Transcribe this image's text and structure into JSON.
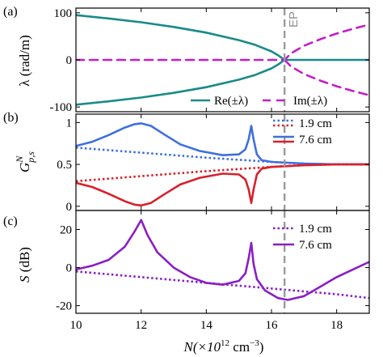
{
  "colors": {
    "teal": "#1a8a8a",
    "magenta": "#c21fc7",
    "blue": "#3f6fe0",
    "red": "#d8212c",
    "purple": "#8a1fc4",
    "ep_line": "#9a9a9a"
  },
  "shared_x": {
    "label": "N(×10",
    "label_sup": "12",
    "label_unit": " cm",
    "label_unit_sup": "−3",
    "label_close": ")",
    "range": [
      10,
      19
    ],
    "ticks": [
      10,
      12,
      14,
      16,
      18
    ],
    "ep_x": 16.4,
    "ep_label": "EP"
  },
  "chart_data": [
    {
      "type": "line",
      "panel": "(a)",
      "ylabel": "λ (rad/m)",
      "ylim": [
        -110,
        110
      ],
      "yticks": [
        100,
        0,
        -100
      ],
      "legend": {
        "placement": "bottom-right",
        "entries": [
          "Re(±λ)",
          "Im(±λ)"
        ]
      },
      "series": [
        {
          "name": "Re(±λ)",
          "style": "solid",
          "color": "teal",
          "x": [
            10,
            11,
            12,
            13,
            14,
            15,
            15.5,
            16,
            16.2,
            16.4,
            17,
            18,
            19
          ],
          "y": [
            95,
            88,
            80,
            70,
            58,
            42,
            32,
            18,
            10,
            0,
            0,
            0,
            0
          ]
        },
        {
          "name": "-Re(±λ)",
          "style": "solid",
          "color": "teal",
          "x": [
            10,
            11,
            12,
            13,
            14,
            15,
            15.5,
            16,
            16.2,
            16.4
          ],
          "y": [
            -95,
            -88,
            -80,
            -70,
            -58,
            -42,
            -32,
            -18,
            -10,
            0
          ]
        },
        {
          "name": "Im(±λ)",
          "style": "dashed",
          "color": "magenta",
          "x": [
            10,
            12,
            14,
            16,
            16.4,
            16.6,
            17,
            17.5,
            18,
            18.5,
            19
          ],
          "y": [
            0,
            0,
            0,
            0,
            0,
            14,
            30,
            44,
            56,
            66,
            75
          ]
        },
        {
          "name": "-Im(±λ)",
          "style": "dashed",
          "color": "magenta",
          "x": [
            16.4,
            16.6,
            17,
            17.5,
            18,
            18.5,
            19
          ],
          "y": [
            0,
            -14,
            -30,
            -44,
            -56,
            -66,
            -75
          ]
        }
      ]
    },
    {
      "type": "line",
      "panel": "(b)",
      "ylabel": "G",
      "ylabel_sup": "N",
      "ylabel_sub": "p,s",
      "ylim": [
        -0.05,
        1.1
      ],
      "yticks": [
        1,
        0.5,
        0
      ],
      "legend": {
        "placement": "top-right",
        "entries": [
          "1.9 cm",
          "7.6 cm"
        ]
      },
      "series": [
        {
          "name": "1.9 cm",
          "style": "dotted",
          "color": "blue",
          "x": [
            10,
            12,
            14,
            16,
            16.4,
            17,
            18,
            19
          ],
          "y": [
            0.7,
            0.64,
            0.58,
            0.53,
            0.52,
            0.51,
            0.5,
            0.5
          ]
        },
        {
          "name": "1.9 cm",
          "style": "dotted",
          "color": "red",
          "x": [
            10,
            12,
            14,
            16,
            16.4,
            17,
            18,
            19
          ],
          "y": [
            0.3,
            0.36,
            0.42,
            0.47,
            0.48,
            0.49,
            0.5,
            0.5
          ]
        },
        {
          "name": "7.6 cm",
          "style": "solid",
          "color": "blue",
          "x": [
            10,
            10.5,
            11,
            11.5,
            11.8,
            12,
            12.3,
            12.7,
            13.2,
            13.8,
            14.5,
            15,
            15.2,
            15.3,
            15.38,
            15.45,
            15.55,
            15.7,
            16,
            16.5,
            17,
            18,
            19
          ],
          "y": [
            0.72,
            0.77,
            0.85,
            0.94,
            0.98,
            0.99,
            0.96,
            0.86,
            0.74,
            0.66,
            0.61,
            0.62,
            0.68,
            0.8,
            0.96,
            0.8,
            0.62,
            0.55,
            0.53,
            0.52,
            0.51,
            0.5,
            0.5
          ]
        },
        {
          "name": "7.6 cm",
          "style": "solid",
          "color": "red",
          "x": [
            10,
            10.5,
            11,
            11.5,
            11.8,
            12,
            12.3,
            12.7,
            13.2,
            13.8,
            14.5,
            15,
            15.2,
            15.3,
            15.38,
            15.45,
            15.55,
            15.7,
            16,
            16.5,
            17,
            18,
            19
          ],
          "y": [
            0.28,
            0.23,
            0.15,
            0.06,
            0.02,
            0.01,
            0.04,
            0.14,
            0.26,
            0.34,
            0.39,
            0.38,
            0.32,
            0.2,
            0.04,
            0.2,
            0.38,
            0.45,
            0.47,
            0.48,
            0.49,
            0.5,
            0.5
          ]
        }
      ]
    },
    {
      "type": "line",
      "panel": "(c)",
      "ylabel": "S",
      "ylabel_unit": " (dB)",
      "ylim": [
        -24,
        30
      ],
      "yticks": [
        20,
        0,
        -20
      ],
      "legend": {
        "placement": "top-right",
        "entries": [
          "1.9 cm",
          "7.6 cm"
        ]
      },
      "series": [
        {
          "name": "1.9 cm",
          "style": "dotted",
          "color": "purple",
          "x": [
            10,
            12,
            14,
            16,
            18,
            19
          ],
          "y": [
            -2,
            -5,
            -8,
            -11,
            -14,
            -16
          ]
        },
        {
          "name": "7.6 cm",
          "style": "solid",
          "color": "purple",
          "x": [
            10,
            10.5,
            11,
            11.5,
            11.8,
            12,
            12.2,
            12.5,
            13,
            13.5,
            14,
            14.5,
            15,
            15.2,
            15.3,
            15.38,
            15.45,
            15.55,
            15.8,
            16.2,
            16.5,
            17,
            17.5,
            18,
            18.5,
            19
          ],
          "y": [
            -1,
            1,
            4,
            11,
            19,
            25,
            17,
            8,
            0,
            -5,
            -8,
            -9,
            -7,
            -3,
            5,
            13,
            2,
            -6,
            -12,
            -16,
            -17,
            -15,
            -10,
            -5,
            -1,
            3
          ]
        }
      ]
    }
  ],
  "panel_labels": [
    "(a)",
    "(b)",
    "(c)"
  ]
}
